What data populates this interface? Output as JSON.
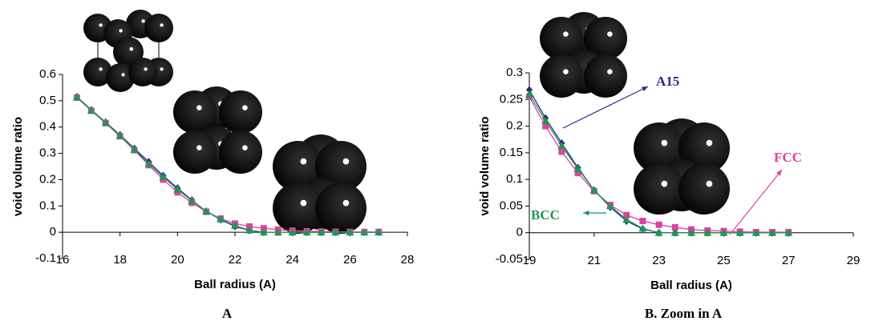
{
  "chart_data": [
    {
      "type": "line",
      "title": "A",
      "x_label": "Ball radius (A)",
      "y_label": "void volume ratio",
      "xlim": [
        16,
        28
      ],
      "xticks": [
        16,
        18,
        20,
        22,
        24,
        26,
        28
      ],
      "ylim": [
        -0.1,
        0.6
      ],
      "yticks": [
        -0.1,
        0,
        0.1,
        0.2,
        0.3,
        0.4,
        0.5,
        0.6
      ],
      "x": [
        16.5,
        17,
        17.5,
        18,
        18.5,
        19,
        19.5,
        20,
        20.5,
        21,
        21.5,
        22,
        22.5,
        23,
        23.5,
        24,
        24.5,
        25,
        25.5,
        26,
        26.5,
        27
      ],
      "series": [
        {
          "color": "#2a2a8a",
          "marker": "diamond",
          "values": [
            0.515,
            0.465,
            0.418,
            0.37,
            0.318,
            0.268,
            0.215,
            0.168,
            0.122,
            0.08,
            0.048,
            0.022,
            0.007,
            0,
            0,
            0,
            0,
            0,
            0,
            0,
            0,
            0
          ]
        },
        {
          "color": "#e040a0",
          "marker": "square",
          "values": [
            0.512,
            0.462,
            0.415,
            0.365,
            0.312,
            0.255,
            0.2,
            0.152,
            0.112,
            0.078,
            0.052,
            0.033,
            0.022,
            0.015,
            0.01,
            0.006,
            0.004,
            0.003,
            0.002,
            0.001,
            0.001,
            0.001
          ]
        },
        {
          "color": "#1a9a50",
          "marker": "triangle",
          "values": [
            0.513,
            0.463,
            0.416,
            0.367,
            0.315,
            0.26,
            0.21,
            0.163,
            0.12,
            0.08,
            0.05,
            0.025,
            0.008,
            0,
            0,
            0,
            0,
            0,
            0,
            0,
            0,
            0
          ]
        }
      ]
    },
    {
      "type": "line",
      "title": "B. Zoom in A",
      "x_label": "Ball radius (A)",
      "y_label": "void volume ratio",
      "xlim": [
        19,
        29
      ],
      "xticks": [
        19,
        21,
        23,
        25,
        27,
        29
      ],
      "ylim": [
        -0.05,
        0.3
      ],
      "yticks": [
        -0.05,
        0,
        0.05,
        0.1,
        0.15,
        0.2,
        0.25,
        0.3
      ],
      "x": [
        19,
        19.5,
        20,
        20.5,
        21,
        21.5,
        22,
        22.5,
        23,
        23.5,
        24,
        24.5,
        25,
        25.5,
        26,
        26.5,
        27
      ],
      "series": [
        {
          "name": "A15",
          "color": "#2a2a8a",
          "marker": "diamond",
          "values": [
            0.268,
            0.215,
            0.168,
            0.122,
            0.08,
            0.048,
            0.022,
            0.007,
            0,
            0,
            0,
            0,
            0,
            0,
            0,
            0,
            0
          ]
        },
        {
          "name": "FCC",
          "color": "#e040a0",
          "marker": "square",
          "values": [
            0.255,
            0.2,
            0.152,
            0.112,
            0.078,
            0.052,
            0.033,
            0.022,
            0.015,
            0.01,
            0.006,
            0.004,
            0.003,
            0.002,
            0.001,
            0.001,
            0.001
          ]
        },
        {
          "name": "BCC",
          "color": "#1a9a50",
          "marker": "triangle",
          "values": [
            0.26,
            0.21,
            0.163,
            0.12,
            0.08,
            0.05,
            0.025,
            0.008,
            0,
            0,
            0,
            0,
            0,
            0,
            0,
            0,
            0
          ]
        }
      ]
    }
  ]
}
